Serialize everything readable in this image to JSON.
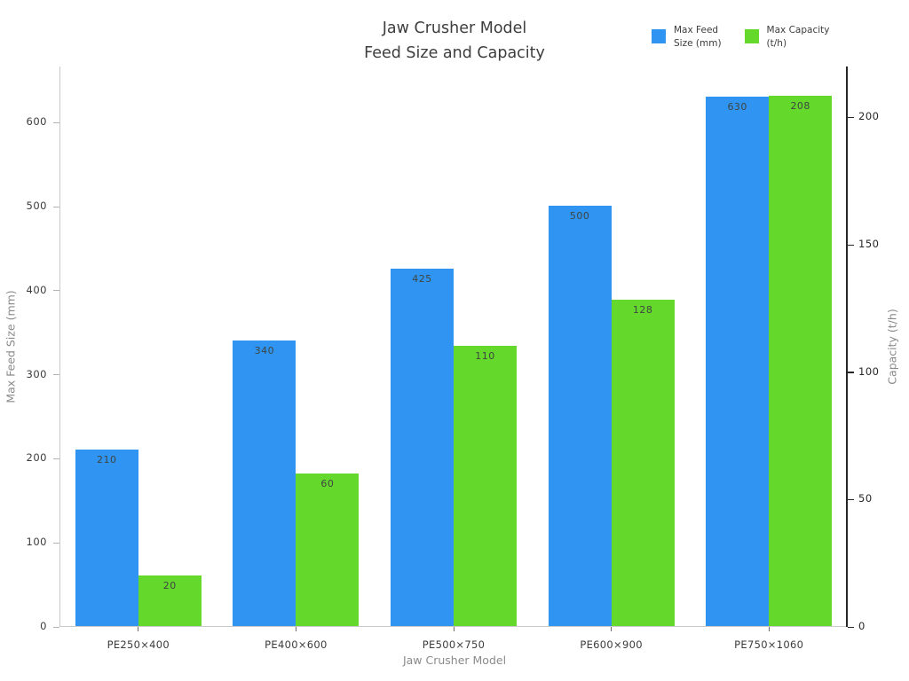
{
  "title": {
    "line1": "Jaw Crusher Model",
    "line2": "Feed Size and Capacity"
  },
  "legend": {
    "entries": [
      {
        "label": "Max Feed\nSize (mm)",
        "color": "#3094F2"
      },
      {
        "label": "Max Capacity\n(t/h)",
        "color": "#64D92B"
      }
    ]
  },
  "chart_data": {
    "type": "bar",
    "categories": [
      "PE250×400",
      "PE400×600",
      "PE500×750",
      "PE600×900",
      "PE750×1060"
    ],
    "series": [
      {
        "name": "Max Feed Size (mm)",
        "axis": "left",
        "color": "#3094F2",
        "values": [
          210,
          340,
          425,
          500,
          630
        ]
      },
      {
        "name": "Max Capacity (t/h)",
        "axis": "right",
        "color": "#64D92B",
        "values": [
          20,
          60,
          110,
          128,
          208
        ]
      }
    ],
    "title": "Jaw Crusher Model Feed Size and Capacity",
    "xlabel": "Jaw Crusher Model",
    "ylabel_left": "Max Feed Size (mm)",
    "ylabel_right": "Capacity (t/h)",
    "left_axis": {
      "ticks": [
        0,
        100,
        200,
        300,
        400,
        500,
        600
      ],
      "max": 666.7
    },
    "right_axis": {
      "ticks": [
        0,
        50,
        100,
        150,
        200
      ],
      "max": 220
    },
    "grid": false,
    "legend_position": "top-right",
    "bar_value_labels": true
  }
}
